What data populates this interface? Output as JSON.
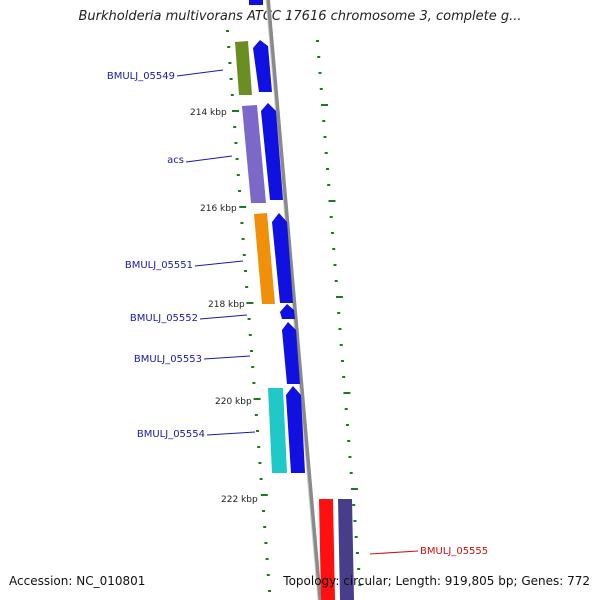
{
  "header": {
    "title": "Burkholderia multivorans ATCC 17616 chromosome 3, complete g..."
  },
  "footer": {
    "accession": "Accession: NC_010801",
    "summary": "Topology: circular; Length: 919,805 bp; Genes: 772"
  },
  "scale_labels": [
    "214 kbp",
    "216 kbp",
    "218 kbp",
    "220 kbp",
    "222 kbp"
  ],
  "genes": [
    {
      "label": "BMULJ_05549",
      "color": "#1a1aa8"
    },
    {
      "label": "acs",
      "color": "#1a1aa8"
    },
    {
      "label": "BMULJ_05551",
      "color": "#1a1aa8"
    },
    {
      "label": "BMULJ_05552",
      "color": "#1a1aa8"
    },
    {
      "label": "BMULJ_05553",
      "color": "#1a1aa8"
    },
    {
      "label": "BMULJ_05554",
      "color": "#1a1aa8"
    },
    {
      "label": "BMULJ_05555",
      "color": "#cc1111"
    }
  ],
  "colors": {
    "backbone": "#8a8a8a",
    "tick": "#1f7a1f",
    "cds": "#1010e0",
    "cog_green": "#6b8e23",
    "cog_purple": "#7b68c8",
    "cog_orange": "#f0900a",
    "cog_cyan": "#20c8c8",
    "cog_red": "#ff1010",
    "cog_darkpurple": "#483d8b"
  }
}
